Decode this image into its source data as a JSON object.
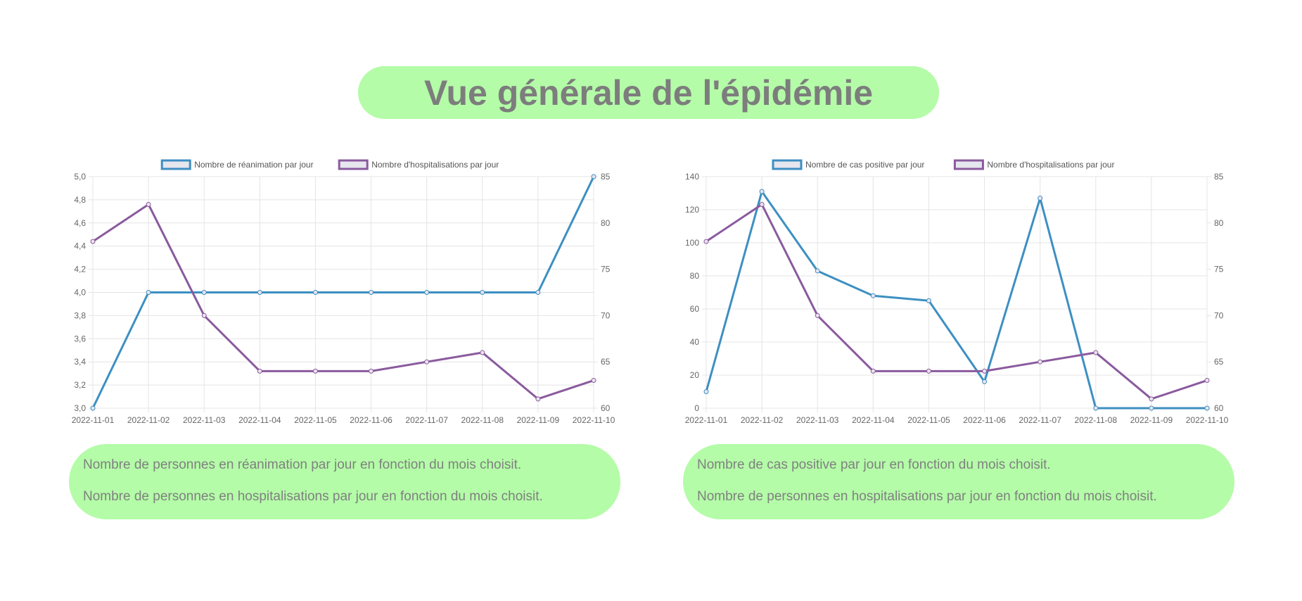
{
  "header": {
    "title": "Vue générale de l'épidémie"
  },
  "descriptions": {
    "left": [
      "Nombre de personnes en réanimation par jour en fonction du mois choisit.",
      "Nombre de personnes en hospitalisations par jour en fonction du mois choisit."
    ],
    "right": [
      "Nombre de cas positive par jour en fonction du mois choisit.",
      "Nombre de personnes en hospitalisations par jour en fonction du mois choisit."
    ]
  },
  "colors": {
    "blue": "#3d8fc2",
    "purple": "#8a5a9e",
    "grid": "#e4e4e4",
    "pill": "#b4fca8"
  },
  "chart_data": [
    {
      "type": "line",
      "categories": [
        "2022-11-01",
        "2022-11-02",
        "2022-11-03",
        "2022-11-04",
        "2022-11-05",
        "2022-11-06",
        "2022-11-07",
        "2022-11-08",
        "2022-11-09",
        "2022-11-10"
      ],
      "legend_position": "top",
      "grid": true,
      "y_left": {
        "min": 3.0,
        "max": 5.0,
        "ticks": [
          "5,0",
          "4,8",
          "4,6",
          "4,4",
          "4,2",
          "4,0",
          "3,8",
          "3,6",
          "3,4",
          "3,2",
          "3,0"
        ]
      },
      "y_right": {
        "min": 60,
        "max": 85,
        "ticks": [
          "85",
          "80",
          "75",
          "70",
          "65",
          "60"
        ]
      },
      "series": [
        {
          "name": "Nombre de réanimation par jour",
          "axis": "left",
          "color": "#3d8fc2",
          "values": [
            3,
            4,
            4,
            4,
            4,
            4,
            4,
            4,
            4,
            5
          ]
        },
        {
          "name": "Nombre d'hospitalisations par jour",
          "axis": "right",
          "color": "#8a5a9e",
          "values": [
            78,
            82,
            70,
            64,
            64,
            64,
            65,
            66,
            61,
            63
          ]
        }
      ]
    },
    {
      "type": "line",
      "categories": [
        "2022-11-01",
        "2022-11-02",
        "2022-11-03",
        "2022-11-04",
        "2022-11-05",
        "2022-11-06",
        "2022-11-07",
        "2022-11-08",
        "2022-11-09",
        "2022-11-10"
      ],
      "legend_position": "top",
      "grid": true,
      "y_left": {
        "min": 0,
        "max": 140,
        "ticks": [
          "140",
          "120",
          "100",
          "80",
          "60",
          "40",
          "20",
          "0"
        ]
      },
      "y_right": {
        "min": 60,
        "max": 85,
        "ticks": [
          "85",
          "80",
          "75",
          "70",
          "65",
          "60"
        ]
      },
      "series": [
        {
          "name": "Nombre de cas positive par jour",
          "axis": "left",
          "color": "#3d8fc2",
          "values": [
            10,
            131,
            83,
            68,
            65,
            16,
            127,
            0,
            0,
            0
          ]
        },
        {
          "name": "Nombre d'hospitalisations par jour",
          "axis": "right",
          "color": "#8a5a9e",
          "values": [
            78,
            82,
            70,
            64,
            64,
            64,
            65,
            66,
            61,
            63
          ]
        }
      ]
    }
  ]
}
